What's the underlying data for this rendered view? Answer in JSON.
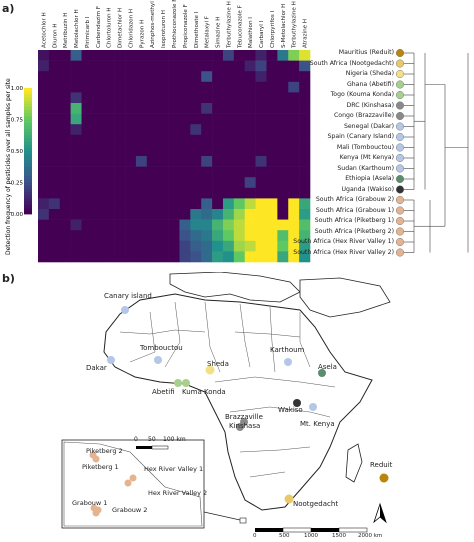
{
  "panel_a_label": "a)",
  "panel_b_label": "b)",
  "pesticide_columns": [
    "Acetochlor H",
    "Diuron H",
    "Metribuzin H",
    "Metolachlor H",
    "Pirimicarb I",
    "Carbendazim F",
    "Chlortoluron H",
    "Dimetachlor H",
    "Chloridazon H",
    "Pyrazon H",
    "Azinphos-methyl I",
    "Isoproturon H",
    "Prothioconazole F",
    "Propiconazole F",
    "Dimethoate I",
    "Metalaxyl F",
    "Simazine H",
    "Terbuthylazine H",
    "Tebuconazole F",
    "Malathion I",
    "Carbaryl I",
    "Chlorpyrifos I",
    "S-Metolachlor H",
    "Terbuthylazine H",
    "Atrazine H"
  ],
  "colorbar": {
    "title": "Detection frequency of pesticides over all samples per site",
    "ticks": [
      "1.00",
      "0.75",
      "0.50",
      "0.25",
      "0.00"
    ],
    "low_color": "#440154",
    "high_color": "#fde725"
  },
  "sites": [
    {
      "name": "Mauritius (Reduit)",
      "color": "#b8860b"
    },
    {
      "name": "South Africa (Nootgedacht)",
      "color": "#e8c96a"
    },
    {
      "name": "Nigeria (Sheda)",
      "color": "#f2df86"
    },
    {
      "name": "Ghana (Abetifi)",
      "color": "#a8d08d"
    },
    {
      "name": "Togo (Kouma Konda)",
      "color": "#a8d08d"
    },
    {
      "name": "DRC (Kinshasa)",
      "color": "#8a8a8a"
    },
    {
      "name": "Congo (Brazzaville)",
      "color": "#8a8a8a"
    },
    {
      "name": "Senegal (Dakar)",
      "color": "#b4c7e7"
    },
    {
      "name": "Spain (Canary Island)",
      "color": "#b4c7e7"
    },
    {
      "name": "Mali (Tombouctou)",
      "color": "#b4c7e7"
    },
    {
      "name": "Kenya (Mt Kenya)",
      "color": "#b4c7e7"
    },
    {
      "name": "Sudan (Karthoum)",
      "color": "#b4c7e7"
    },
    {
      "name": "Ethiopia (Asela)",
      "color": "#5b8c6e"
    },
    {
      "name": "Uganda (Wakiso)",
      "color": "#333333"
    },
    {
      "name": "South Africa (Grabouw 2)",
      "color": "#e3b48f"
    },
    {
      "name": "South Africa (Grabouw 1)",
      "color": "#e3b48f"
    },
    {
      "name": "South Africa (Piketberg 1)",
      "color": "#e3b48f"
    },
    {
      "name": "South Africa (Piketberg 2)",
      "color": "#e3b48f"
    },
    {
      "name": "South Africa (Hex River Valley 1)",
      "color": "#e3b48f"
    },
    {
      "name": "South Africa (Hex River Valley 2)",
      "color": "#e3b48f"
    }
  ],
  "heatmap_rows": [
    [
      0.05,
      0.0,
      0.0,
      0.3,
      0.0,
      0.0,
      0.0,
      0.0,
      0.0,
      0.0,
      0.0,
      0.0,
      0.0,
      0.0,
      0.0,
      0.0,
      0.0,
      0.2,
      0.0,
      0.0,
      0.1,
      0.0,
      0.4,
      0.8,
      0.95
    ],
    [
      0.1,
      0.0,
      0.0,
      0.0,
      0.0,
      0.0,
      0.0,
      0.0,
      0.0,
      0.0,
      0.0,
      0.0,
      0.0,
      0.0,
      0.0,
      0.0,
      0.0,
      0.0,
      0.0,
      0.1,
      0.2,
      0.0,
      0.0,
      0.0,
      0.25
    ],
    [
      0.0,
      0.0,
      0.0,
      0.0,
      0.0,
      0.0,
      0.0,
      0.0,
      0.0,
      0.0,
      0.0,
      0.0,
      0.0,
      0.0,
      0.0,
      0.25,
      0.0,
      0.0,
      0.0,
      0.0,
      0.1,
      0.0,
      0.0,
      0.0,
      0.0
    ],
    [
      0.0,
      0.0,
      0.0,
      0.0,
      0.0,
      0.0,
      0.0,
      0.0,
      0.0,
      0.0,
      0.0,
      0.0,
      0.0,
      0.0,
      0.0,
      0.0,
      0.0,
      0.0,
      0.0,
      0.0,
      0.0,
      0.0,
      0.0,
      0.2,
      0.0
    ],
    [
      0.0,
      0.0,
      0.0,
      0.15,
      0.0,
      0.0,
      0.0,
      0.0,
      0.0,
      0.0,
      0.0,
      0.0,
      0.0,
      0.0,
      0.0,
      0.0,
      0.0,
      0.0,
      0.0,
      0.0,
      0.0,
      0.0,
      0.0,
      0.0,
      0.0
    ],
    [
      0.0,
      0.0,
      0.0,
      0.65,
      0.0,
      0.0,
      0.0,
      0.0,
      0.0,
      0.0,
      0.0,
      0.0,
      0.0,
      0.0,
      0.0,
      0.15,
      0.0,
      0.0,
      0.0,
      0.0,
      0.0,
      0.0,
      0.0,
      0.0,
      0.0
    ],
    [
      0.0,
      0.0,
      0.0,
      0.6,
      0.0,
      0.0,
      0.0,
      0.0,
      0.0,
      0.0,
      0.0,
      0.0,
      0.0,
      0.0,
      0.0,
      0.0,
      0.0,
      0.0,
      0.0,
      0.0,
      0.0,
      0.0,
      0.0,
      0.0,
      0.0
    ],
    [
      0.0,
      0.0,
      0.0,
      0.1,
      0.0,
      0.0,
      0.0,
      0.0,
      0.0,
      0.0,
      0.0,
      0.0,
      0.0,
      0.0,
      0.15,
      0.0,
      0.0,
      0.0,
      0.0,
      0.0,
      0.0,
      0.0,
      0.0,
      0.0,
      0.0
    ],
    [
      0.0,
      0.0,
      0.0,
      0.0,
      0.0,
      0.0,
      0.0,
      0.0,
      0.0,
      0.0,
      0.0,
      0.0,
      0.0,
      0.0,
      0.0,
      0.0,
      0.0,
      0.0,
      0.0,
      0.0,
      0.0,
      0.0,
      0.0,
      0.0,
      0.0
    ],
    [
      0.0,
      0.0,
      0.0,
      0.0,
      0.0,
      0.0,
      0.0,
      0.0,
      0.0,
      0.0,
      0.0,
      0.0,
      0.0,
      0.0,
      0.0,
      0.0,
      0.0,
      0.0,
      0.0,
      0.0,
      0.0,
      0.0,
      0.0,
      0.0,
      0.0
    ],
    [
      0.0,
      0.0,
      0.0,
      0.0,
      0.0,
      0.0,
      0.0,
      0.0,
      0.0,
      0.2,
      0.0,
      0.0,
      0.0,
      0.0,
      0.0,
      0.2,
      0.0,
      0.0,
      0.0,
      0.0,
      0.15,
      0.0,
      0.0,
      0.0,
      0.0
    ],
    [
      0.0,
      0.0,
      0.0,
      0.0,
      0.0,
      0.0,
      0.0,
      0.0,
      0.0,
      0.0,
      0.0,
      0.0,
      0.0,
      0.0,
      0.0,
      0.0,
      0.0,
      0.0,
      0.0,
      0.0,
      0.0,
      0.0,
      0.0,
      0.0,
      0.0
    ],
    [
      0.0,
      0.0,
      0.0,
      0.0,
      0.0,
      0.0,
      0.0,
      0.0,
      0.0,
      0.0,
      0.0,
      0.0,
      0.0,
      0.0,
      0.0,
      0.0,
      0.0,
      0.0,
      0.0,
      0.2,
      0.0,
      0.0,
      0.0,
      0.0,
      0.0
    ],
    [
      0.0,
      0.0,
      0.0,
      0.0,
      0.0,
      0.0,
      0.0,
      0.0,
      0.0,
      0.0,
      0.0,
      0.0,
      0.0,
      0.0,
      0.0,
      0.0,
      0.0,
      0.0,
      0.0,
      0.0,
      0.0,
      0.0,
      0.0,
      0.0,
      0.0
    ],
    [
      0.1,
      0.15,
      0.0,
      0.0,
      0.0,
      0.0,
      0.0,
      0.0,
      0.0,
      0.0,
      0.0,
      0.0,
      0.0,
      0.0,
      0.0,
      0.3,
      0.0,
      0.55,
      0.75,
      0.9,
      1.0,
      1.0,
      0.0,
      1.0,
      0.6
    ],
    [
      0.15,
      0.0,
      0.0,
      0.0,
      0.0,
      0.0,
      0.0,
      0.0,
      0.0,
      0.0,
      0.0,
      0.0,
      0.0,
      0.0,
      0.4,
      0.35,
      0.45,
      0.65,
      0.85,
      1.0,
      1.0,
      1.0,
      0.0,
      1.0,
      0.55
    ],
    [
      0.0,
      0.0,
      0.0,
      0.1,
      0.0,
      0.0,
      0.0,
      0.0,
      0.0,
      0.0,
      0.0,
      0.0,
      0.0,
      0.3,
      0.45,
      0.45,
      0.65,
      0.8,
      0.9,
      1.0,
      1.0,
      1.0,
      1.0,
      1.0,
      0.7
    ],
    [
      0.0,
      0.0,
      0.0,
      0.0,
      0.0,
      0.0,
      0.0,
      0.0,
      0.0,
      0.0,
      0.0,
      0.0,
      0.0,
      0.25,
      0.35,
      0.4,
      0.6,
      0.75,
      0.9,
      1.0,
      1.0,
      1.0,
      0.7,
      1.0,
      0.65
    ],
    [
      0.0,
      0.0,
      0.0,
      0.0,
      0.0,
      0.0,
      0.0,
      0.0,
      0.0,
      0.0,
      0.0,
      0.0,
      0.0,
      0.2,
      0.3,
      0.35,
      0.5,
      0.6,
      0.85,
      0.9,
      1.0,
      1.0,
      0.75,
      1.0,
      0.55
    ],
    [
      0.0,
      0.0,
      0.0,
      0.0,
      0.0,
      0.0,
      0.0,
      0.0,
      0.0,
      0.0,
      0.0,
      0.0,
      0.0,
      0.2,
      0.25,
      0.35,
      0.55,
      0.5,
      0.75,
      1.0,
      1.0,
      1.0,
      0.6,
      1.0,
      0.5
    ]
  ],
  "map": {
    "labels": [
      {
        "text": "Canary island",
        "key": "canary"
      },
      {
        "text": "Dakar",
        "key": "dakar"
      },
      {
        "text": "Tombouctou",
        "key": "tombouctou"
      },
      {
        "text": "Karthoum",
        "key": "karthoum"
      },
      {
        "text": "Asela",
        "key": "asela"
      },
      {
        "text": "Sheda",
        "key": "sheda"
      },
      {
        "text": "Abetifi",
        "key": "abetifi"
      },
      {
        "text": "Kuma Konda",
        "key": "kuma"
      },
      {
        "text": "Wakiso",
        "key": "wakiso"
      },
      {
        "text": "Brazzaville",
        "key": "brazzaville"
      },
      {
        "text": "Kinshasa",
        "key": "kinshasa"
      },
      {
        "text": "Mt. Kenya",
        "key": "mtkenya"
      },
      {
        "text": "Reduit",
        "key": "reduit"
      },
      {
        "text": "Nootgedacht",
        "key": "nootgedacht"
      }
    ],
    "inset_labels": [
      {
        "text": "Piketberg 2"
      },
      {
        "text": "Piketberg 1"
      },
      {
        "text": "Hex River Valley 1"
      },
      {
        "text": "Hex River Valley 2"
      },
      {
        "text": "Grabouw 1"
      },
      {
        "text": "Grabouw 2"
      }
    ],
    "inset_scale": [
      "0",
      "50",
      "100 km"
    ],
    "main_scale": [
      "0",
      "500",
      "1000",
      "1500",
      "2000 km"
    ],
    "north_letter": "N"
  }
}
